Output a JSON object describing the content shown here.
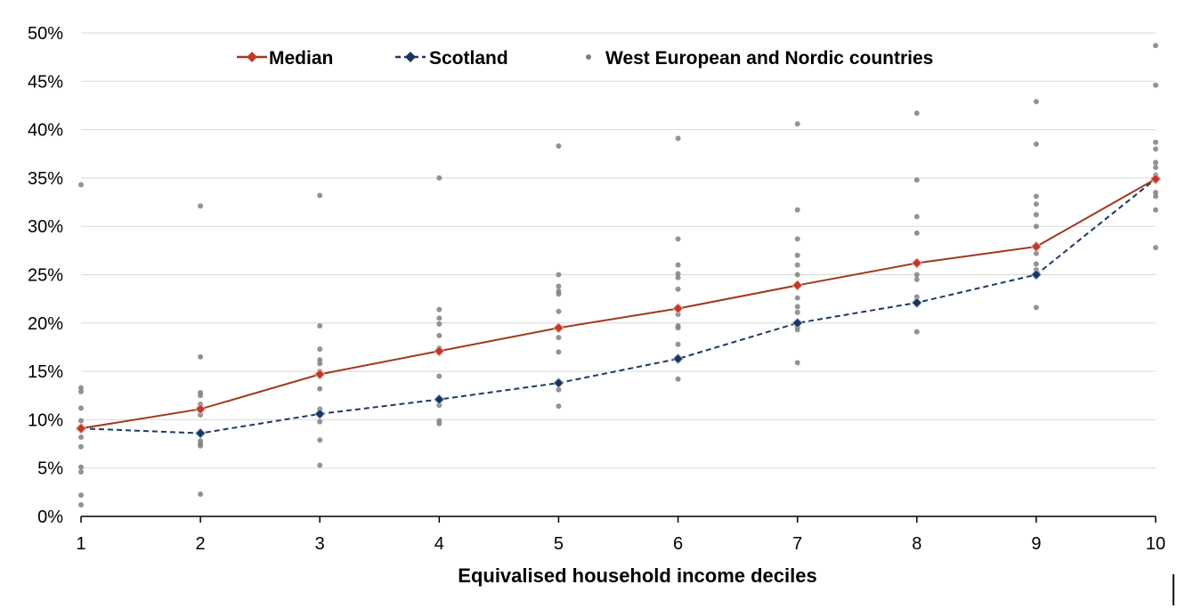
{
  "chart_data": {
    "type": "line",
    "title": "",
    "xlabel": "Equivalised household income deciles",
    "ylabel": "",
    "categories": [
      "1",
      "2",
      "3",
      "4",
      "5",
      "6",
      "7",
      "8",
      "9",
      "10"
    ],
    "ylim": [
      0,
      50
    ],
    "yticks": [
      "0%",
      "5%",
      "10%",
      "15%",
      "20%",
      "25%",
      "30%",
      "35%",
      "40%",
      "45%",
      "50%"
    ],
    "grid": "horizontal",
    "legend_position": "top",
    "series": [
      {
        "name": "Median",
        "style": "solid line with diamond markers",
        "color": "#A0391E",
        "marker_color": "#C0392B",
        "values": [
          9.1,
          11.1,
          14.7,
          17.1,
          19.5,
          21.5,
          23.9,
          26.2,
          27.9,
          34.9
        ]
      },
      {
        "name": "Scotland",
        "style": "dashed line with diamond markers",
        "color": "#1F3864",
        "marker_color": "#17375E",
        "values": [
          9.1,
          8.6,
          10.6,
          12.1,
          13.8,
          16.3,
          20.0,
          22.1,
          25.0,
          34.9
        ]
      },
      {
        "name": "West European and Nordic countries",
        "style": "dots",
        "color": "#808080",
        "points": [
          [
            1,
            34.3
          ],
          [
            1,
            13.3
          ],
          [
            1,
            12.9
          ],
          [
            1,
            11.2
          ],
          [
            1,
            9.9
          ],
          [
            1,
            9.3
          ],
          [
            1,
            8.9
          ],
          [
            1,
            8.2
          ],
          [
            1,
            7.2
          ],
          [
            1,
            5.1
          ],
          [
            1,
            4.6
          ],
          [
            1,
            2.2
          ],
          [
            1,
            1.2
          ],
          [
            2,
            32.1
          ],
          [
            2,
            16.5
          ],
          [
            2,
            12.8
          ],
          [
            2,
            12.5
          ],
          [
            2,
            11.6
          ],
          [
            2,
            11.3
          ],
          [
            2,
            10.5
          ],
          [
            2,
            7.8
          ],
          [
            2,
            7.5
          ],
          [
            2,
            7.3
          ],
          [
            2,
            2.3
          ],
          [
            3,
            33.2
          ],
          [
            3,
            19.7
          ],
          [
            3,
            17.3
          ],
          [
            3,
            16.2
          ],
          [
            3,
            15.8
          ],
          [
            3,
            15.0
          ],
          [
            3,
            13.2
          ],
          [
            3,
            11.1
          ],
          [
            3,
            10.8
          ],
          [
            3,
            9.8
          ],
          [
            3,
            7.9
          ],
          [
            3,
            5.3
          ],
          [
            4,
            35.0
          ],
          [
            4,
            21.4
          ],
          [
            4,
            20.5
          ],
          [
            4,
            19.9
          ],
          [
            4,
            18.7
          ],
          [
            4,
            17.4
          ],
          [
            4,
            16.9
          ],
          [
            4,
            14.5
          ],
          [
            4,
            12.0
          ],
          [
            4,
            11.5
          ],
          [
            4,
            9.9
          ],
          [
            4,
            9.6
          ],
          [
            5,
            38.3
          ],
          [
            5,
            25.0
          ],
          [
            5,
            23.8
          ],
          [
            5,
            23.3
          ],
          [
            5,
            23.0
          ],
          [
            5,
            21.2
          ],
          [
            5,
            19.3
          ],
          [
            5,
            18.5
          ],
          [
            5,
            17.0
          ],
          [
            5,
            14.0
          ],
          [
            5,
            13.1
          ],
          [
            5,
            11.4
          ],
          [
            6,
            39.1
          ],
          [
            6,
            28.7
          ],
          [
            6,
            26.0
          ],
          [
            6,
            25.1
          ],
          [
            6,
            24.7
          ],
          [
            6,
            23.5
          ],
          [
            6,
            20.9
          ],
          [
            6,
            19.7
          ],
          [
            6,
            19.5
          ],
          [
            6,
            17.8
          ],
          [
            6,
            16.5
          ],
          [
            6,
            14.2
          ],
          [
            7,
            40.6
          ],
          [
            7,
            31.7
          ],
          [
            7,
            28.7
          ],
          [
            7,
            27.0
          ],
          [
            7,
            26.0
          ],
          [
            7,
            25.0
          ],
          [
            7,
            22.6
          ],
          [
            7,
            21.7
          ],
          [
            7,
            21.1
          ],
          [
            7,
            19.6
          ],
          [
            7,
            19.3
          ],
          [
            7,
            15.9
          ],
          [
            8,
            41.7
          ],
          [
            8,
            34.8
          ],
          [
            8,
            31.0
          ],
          [
            8,
            29.3
          ],
          [
            8,
            25.0
          ],
          [
            8,
            24.5
          ],
          [
            8,
            22.7
          ],
          [
            8,
            22.3
          ],
          [
            8,
            21.9
          ],
          [
            8,
            19.1
          ],
          [
            9,
            42.9
          ],
          [
            9,
            38.5
          ],
          [
            9,
            33.1
          ],
          [
            9,
            32.3
          ],
          [
            9,
            31.2
          ],
          [
            9,
            30.0
          ],
          [
            9,
            27.2
          ],
          [
            9,
            26.1
          ],
          [
            9,
            25.5
          ],
          [
            9,
            21.6
          ],
          [
            10,
            48.7
          ],
          [
            10,
            44.6
          ],
          [
            10,
            38.7
          ],
          [
            10,
            38.0
          ],
          [
            10,
            36.6
          ],
          [
            10,
            36.1
          ],
          [
            10,
            35.3
          ],
          [
            10,
            33.5
          ],
          [
            10,
            33.1
          ],
          [
            10,
            31.7
          ],
          [
            10,
            27.8
          ]
        ]
      }
    ]
  }
}
